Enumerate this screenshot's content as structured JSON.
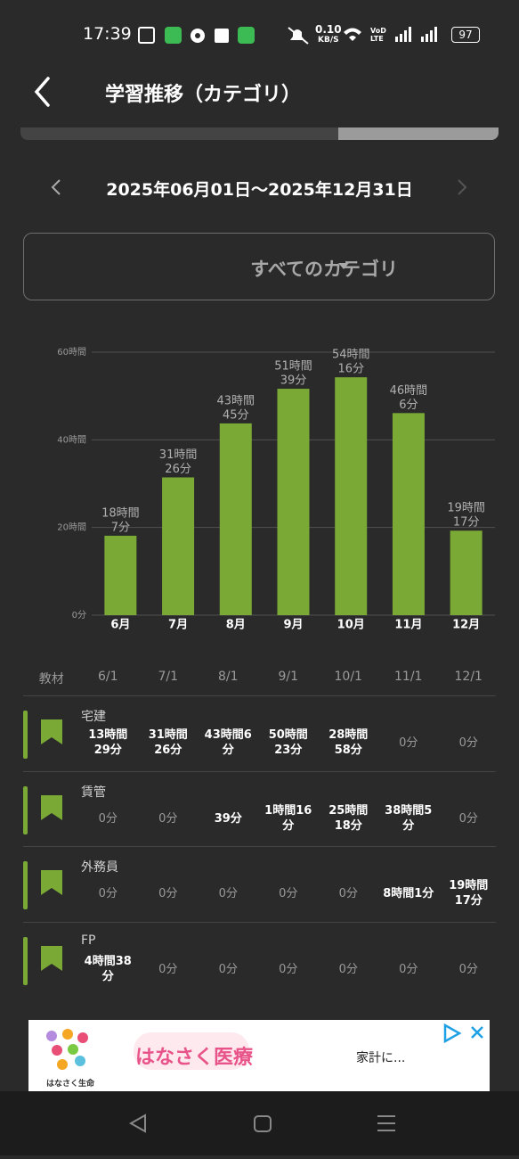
{
  "status_bar": {
    "time": "17:39",
    "net_speed": "0.10",
    "net_unit": "KB/S",
    "battery": "97"
  },
  "header": {
    "title": "学習推移（カテゴリ）"
  },
  "date_range": "2025年06月01日〜2025年12月31日",
  "category_select": "すべてのカテゴリ",
  "chart_data": {
    "type": "bar",
    "categories": [
      "6月",
      "7月",
      "8月",
      "9月",
      "10月",
      "11月",
      "12月"
    ],
    "values": [
      18.12,
      31.43,
      43.75,
      51.65,
      54.27,
      46.1,
      19.28
    ],
    "value_labels": [
      [
        "18時間",
        "7分"
      ],
      [
        "31時間",
        "26分"
      ],
      [
        "43時間",
        "45分"
      ],
      [
        "51時間",
        "39分"
      ],
      [
        "54時間",
        "16分"
      ],
      [
        "46時間",
        "6分"
      ],
      [
        "19時間",
        "17分"
      ]
    ],
    "color": "#7aa935",
    "ylim": [
      0,
      60
    ],
    "yticks": [
      {
        "value": 0,
        "label": "0分"
      },
      {
        "value": 20,
        "label": "20時間"
      },
      {
        "value": 40,
        "label": "40時間"
      },
      {
        "value": 60,
        "label": "60時間"
      }
    ],
    "grid": true
  },
  "table": {
    "header": [
      "教材",
      "6/1",
      "7/1",
      "8/1",
      "9/1",
      "10/1",
      "11/1",
      "12/1"
    ],
    "rows": [
      {
        "name": "宅建",
        "cells": [
          "13時間29分",
          "31時間26分",
          "43時間6分",
          "50時間23分",
          "28時間58分",
          "0分",
          "0分"
        ]
      },
      {
        "name": "賃管",
        "cells": [
          "0分",
          "0分",
          "39分",
          "1時間16分",
          "25時間18分",
          "38時間5分",
          "0分"
        ]
      },
      {
        "name": "外務員",
        "cells": [
          "0分",
          "0分",
          "0分",
          "0分",
          "0分",
          "8時間1分",
          "19時間17分"
        ]
      },
      {
        "name": "FP",
        "cells": [
          "4時間38分",
          "0分",
          "0分",
          "0分",
          "0分",
          "0分",
          "0分"
        ]
      }
    ]
  },
  "ad": {
    "brand": "はなさく生命",
    "product": "はなさく医療",
    "text": "家計に..."
  }
}
